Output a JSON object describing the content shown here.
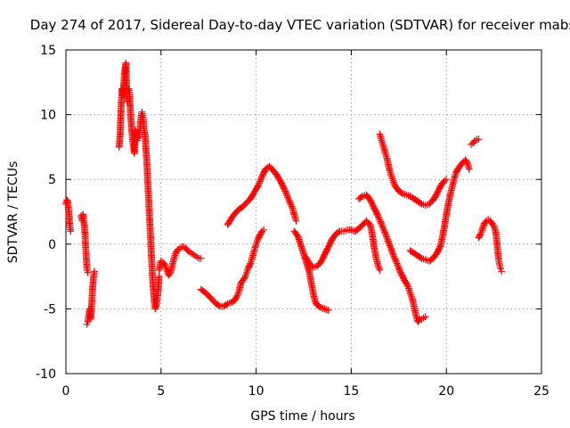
{
  "chart_data": {
    "type": "scatter",
    "title": "Day 274 of 2017, Sidereal Day-to-day VTEC variation (SDTVAR) for receiver mabs",
    "xlabel": "GPS time / hours",
    "ylabel": "SDTVAR / TECUs",
    "xlim": [
      0,
      25
    ],
    "ylim": [
      -10,
      15
    ],
    "xticks": [
      0,
      5,
      10,
      15,
      20,
      25
    ],
    "yticks": [
      -10,
      -5,
      0,
      5,
      10,
      15
    ],
    "grid": true,
    "legend": "none",
    "marker": "+",
    "series": [
      {
        "name": "SDTVAR",
        "color": "#ff0000",
        "segments": [
          [
            [
              0.0,
              3.1
            ],
            [
              0.05,
              3.4
            ],
            [
              0.1,
              3.3
            ],
            [
              0.15,
              2.5
            ],
            [
              0.2,
              1.5
            ],
            [
              0.25,
              1.0
            ]
          ],
          [
            [
              0.8,
              2.2
            ],
            [
              0.85,
              1.8
            ],
            [
              0.9,
              2.3
            ],
            [
              0.95,
              1.8
            ],
            [
              1.0,
              0.8
            ],
            [
              1.05,
              -0.5
            ],
            [
              1.1,
              -1.8
            ],
            [
              1.15,
              -2.2
            ]
          ],
          [
            [
              1.1,
              -6.2
            ],
            [
              1.15,
              -6.0
            ],
            [
              1.2,
              -5.5
            ],
            [
              1.25,
              -5.0
            ],
            [
              1.3,
              -5.8
            ],
            [
              1.35,
              -4.8
            ],
            [
              1.4,
              -3.5
            ],
            [
              1.45,
              -2.5
            ],
            [
              1.5,
              -2.1
            ]
          ],
          [
            [
              2.8,
              7.5
            ],
            [
              2.85,
              8.5
            ],
            [
              2.9,
              10.5
            ],
            [
              2.95,
              12.0
            ],
            [
              3.0,
              11.5
            ],
            [
              3.05,
              12.5
            ],
            [
              3.1,
              13.5
            ],
            [
              3.15,
              14.0
            ],
            [
              3.2,
              11.5
            ],
            [
              3.25,
              11.0
            ]
          ],
          [
            [
              3.3,
              12.0
            ],
            [
              3.35,
              11.5
            ],
            [
              3.4,
              10.0
            ],
            [
              3.45,
              9.0
            ],
            [
              3.5,
              8.2
            ],
            [
              3.55,
              7.5
            ],
            [
              3.6,
              7.0
            ],
            [
              3.65,
              8.8
            ],
            [
              3.7,
              8.5
            ],
            [
              3.75,
              8.0
            ]
          ],
          [
            [
              3.8,
              8.2
            ],
            [
              3.85,
              8.5
            ],
            [
              3.9,
              9.0
            ],
            [
              3.95,
              9.8
            ],
            [
              4.0,
              10.2
            ],
            [
              4.05,
              9.8
            ],
            [
              4.1,
              9.0
            ],
            [
              4.15,
              8.5
            ],
            [
              4.2,
              7.5
            ],
            [
              4.25,
              6.5
            ],
            [
              4.3,
              5.0
            ],
            [
              4.35,
              3.5
            ],
            [
              4.4,
              2.0
            ],
            [
              4.45,
              0.5
            ],
            [
              4.5,
              -1.0
            ],
            [
              4.55,
              -2.5
            ],
            [
              4.6,
              -3.5
            ],
            [
              4.65,
              -4.5
            ],
            [
              4.7,
              -5.0
            ],
            [
              4.75,
              -4.8
            ],
            [
              4.8,
              -4.2
            ],
            [
              4.85,
              -3.5
            ],
            [
              4.9,
              -2.5
            ]
          ],
          [
            [
              4.9,
              -2.0
            ],
            [
              5.0,
              -1.3
            ],
            [
              5.1,
              -1.4
            ],
            [
              5.2,
              -1.6
            ],
            [
              5.3,
              -2.0
            ],
            [
              5.4,
              -2.4
            ],
            [
              5.5,
              -2.2
            ],
            [
              5.6,
              -1.6
            ],
            [
              5.7,
              -1.0
            ],
            [
              5.8,
              -0.6
            ],
            [
              5.9,
              -0.4
            ],
            [
              6.0,
              -0.3
            ],
            [
              6.1,
              -0.2
            ],
            [
              6.2,
              -0.2
            ],
            [
              6.3,
              -0.3
            ],
            [
              6.4,
              -0.5
            ],
            [
              6.5,
              -0.6
            ],
            [
              6.6,
              -0.7
            ],
            [
              6.7,
              -0.8
            ],
            [
              6.8,
              -0.9
            ],
            [
              6.9,
              -1.0
            ],
            [
              7.0,
              -1.1
            ],
            [
              7.1,
              -1.1
            ]
          ],
          [
            [
              7.1,
              -3.5
            ],
            [
              7.3,
              -3.7
            ],
            [
              7.5,
              -4.0
            ],
            [
              7.7,
              -4.3
            ],
            [
              7.9,
              -4.6
            ],
            [
              8.1,
              -4.8
            ],
            [
              8.3,
              -4.8
            ],
            [
              8.5,
              -4.6
            ],
            [
              8.7,
              -4.5
            ],
            [
              8.9,
              -4.3
            ],
            [
              9.0,
              -4.0
            ],
            [
              9.1,
              -3.6
            ],
            [
              9.2,
              -3.0
            ],
            [
              9.3,
              -2.8
            ],
            [
              9.4,
              -2.6
            ],
            [
              9.5,
              -2.2
            ],
            [
              9.6,
              -1.8
            ],
            [
              9.7,
              -1.5
            ],
            [
              9.8,
              -1.0
            ],
            [
              9.9,
              -0.5
            ],
            [
              10.0,
              0.0
            ],
            [
              10.1,
              0.4
            ],
            [
              10.2,
              0.7
            ],
            [
              10.3,
              1.0
            ],
            [
              10.4,
              1.1
            ]
          ],
          [
            [
              8.5,
              1.5
            ],
            [
              8.7,
              2.0
            ],
            [
              8.9,
              2.4
            ],
            [
              9.1,
              2.7
            ],
            [
              9.3,
              2.9
            ],
            [
              9.5,
              3.2
            ],
            [
              9.7,
              3.5
            ],
            [
              9.9,
              4.0
            ],
            [
              10.1,
              4.5
            ],
            [
              10.3,
              5.2
            ],
            [
              10.5,
              5.8
            ],
            [
              10.7,
              6.0
            ],
            [
              10.9,
              5.7
            ],
            [
              11.1,
              5.3
            ],
            [
              11.3,
              4.8
            ],
            [
              11.5,
              4.2
            ],
            [
              11.7,
              3.5
            ],
            [
              11.9,
              2.8
            ],
            [
              12.0,
              2.3
            ],
            [
              12.1,
              1.8
            ]
          ],
          [
            [
              12.0,
              1.0
            ],
            [
              12.2,
              0.6
            ],
            [
              12.4,
              -0.3
            ],
            [
              12.6,
              -1.2
            ],
            [
              12.8,
              -2.2
            ],
            [
              12.9,
              -3.0
            ],
            [
              13.0,
              -3.8
            ],
            [
              13.1,
              -4.4
            ],
            [
              13.2,
              -4.7
            ],
            [
              13.4,
              -4.9
            ],
            [
              13.6,
              -5.0
            ],
            [
              13.8,
              -5.1
            ]
          ],
          [
            [
              12.6,
              -1.0
            ],
            [
              12.8,
              -1.5
            ],
            [
              13.0,
              -1.8
            ],
            [
              13.2,
              -1.7
            ],
            [
              13.4,
              -1.4
            ],
            [
              13.6,
              -0.8
            ],
            [
              13.8,
              -0.2
            ],
            [
              14.0,
              0.4
            ],
            [
              14.2,
              0.8
            ],
            [
              14.4,
              1.0
            ],
            [
              14.6,
              1.0
            ],
            [
              14.8,
              1.1
            ],
            [
              15.0,
              1.1
            ],
            [
              15.2,
              1.0
            ],
            [
              15.4,
              1.2
            ],
            [
              15.6,
              1.5
            ],
            [
              15.8,
              1.8
            ],
            [
              16.0,
              1.5
            ],
            [
              16.1,
              0.8
            ],
            [
              16.2,
              -0.2
            ],
            [
              16.3,
              -1.0
            ],
            [
              16.4,
              -1.6
            ],
            [
              16.5,
              -2.0
            ]
          ],
          [
            [
              15.4,
              3.5
            ],
            [
              15.6,
              3.7
            ],
            [
              15.8,
              3.8
            ],
            [
              16.0,
              3.4
            ],
            [
              16.2,
              2.8
            ],
            [
              16.4,
              2.2
            ],
            [
              16.6,
              1.5
            ],
            [
              16.8,
              0.8
            ],
            [
              17.0,
              0.0
            ],
            [
              17.2,
              -0.8
            ],
            [
              17.4,
              -1.5
            ],
            [
              17.6,
              -2.2
            ],
            [
              17.8,
              -2.8
            ],
            [
              18.0,
              -3.3
            ],
            [
              18.1,
              -3.8
            ],
            [
              18.2,
              -4.2
            ],
            [
              18.3,
              -4.8
            ],
            [
              18.4,
              -5.5
            ],
            [
              18.5,
              -6.0
            ],
            [
              18.6,
              -5.8
            ],
            [
              18.7,
              -5.8
            ],
            [
              18.8,
              -5.7
            ],
            [
              18.9,
              -5.6
            ]
          ],
          [
            [
              16.5,
              8.5
            ],
            [
              16.6,
              8.0
            ],
            [
              16.7,
              7.5
            ],
            [
              16.8,
              7.0
            ],
            [
              16.9,
              6.5
            ],
            [
              17.0,
              5.8
            ],
            [
              17.1,
              5.3
            ],
            [
              17.2,
              4.9
            ],
            [
              17.3,
              4.5
            ],
            [
              17.5,
              4.1
            ],
            [
              17.7,
              3.9
            ],
            [
              17.9,
              3.8
            ],
            [
              18.1,
              3.7
            ],
            [
              18.3,
              3.5
            ],
            [
              18.5,
              3.3
            ],
            [
              18.7,
              3.1
            ],
            [
              18.9,
              3.0
            ],
            [
              19.1,
              3.1
            ],
            [
              19.3,
              3.4
            ],
            [
              19.5,
              3.9
            ],
            [
              19.7,
              4.5
            ],
            [
              19.9,
              4.9
            ],
            [
              20.0,
              5.0
            ]
          ],
          [
            [
              18.1,
              -0.5
            ],
            [
              18.3,
              -0.7
            ],
            [
              18.5,
              -0.9
            ],
            [
              18.7,
              -1.1
            ],
            [
              18.9,
              -1.2
            ],
            [
              19.1,
              -1.3
            ],
            [
              19.3,
              -1.1
            ],
            [
              19.5,
              -0.7
            ],
            [
              19.7,
              -0.1
            ],
            [
              19.8,
              0.6
            ],
            [
              19.9,
              1.4
            ],
            [
              20.0,
              2.3
            ],
            [
              20.1,
              3.1
            ],
            [
              20.2,
              3.8
            ],
            [
              20.3,
              4.4
            ],
            [
              20.4,
              5.0
            ],
            [
              20.5,
              5.5
            ],
            [
              20.6,
              5.8
            ],
            [
              20.8,
              6.2
            ],
            [
              21.0,
              6.5
            ],
            [
              21.1,
              6.3
            ],
            [
              21.2,
              5.8
            ]
          ],
          [
            [
              21.3,
              7.7
            ],
            [
              21.4,
              7.8
            ],
            [
              21.5,
              8.0
            ],
            [
              21.6,
              8.1
            ],
            [
              21.7,
              8.1
            ]
          ],
          [
            [
              21.7,
              0.5
            ],
            [
              21.8,
              0.8
            ],
            [
              21.9,
              1.2
            ],
            [
              22.0,
              1.6
            ],
            [
              22.1,
              1.8
            ],
            [
              22.2,
              1.9
            ],
            [
              22.3,
              1.8
            ],
            [
              22.4,
              1.6
            ],
            [
              22.5,
              1.4
            ],
            [
              22.6,
              0.9
            ],
            [
              22.65,
              0.2
            ],
            [
              22.7,
              -0.5
            ],
            [
              22.75,
              -1.2
            ],
            [
              22.8,
              -1.6
            ],
            [
              22.85,
              -1.9
            ],
            [
              22.9,
              -2.1
            ]
          ]
        ]
      }
    ]
  }
}
